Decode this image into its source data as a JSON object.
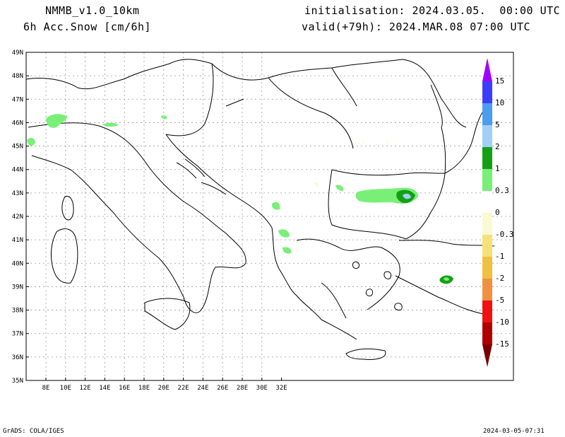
{
  "header": {
    "model": "NMMB_v1.0_10km",
    "field": "6h Acc.Snow [cm/6h]",
    "init": "initialisation: 2024.03.05.  00:00 UTC",
    "valid": "valid(+79h): 2024.MAR.08 07:00 UTC"
  },
  "footer": {
    "left": "GrADS: COLA/IGES",
    "right": "2024-03-05-07:31"
  },
  "axes": {
    "lat_labels": [
      "49N",
      "48N",
      "47N",
      "46N",
      "45N",
      "44N",
      "43N",
      "42N",
      "41N",
      "40N",
      "39N",
      "38N",
      "37N",
      "36N",
      "35N"
    ],
    "lon_labels": [
      "8E",
      "10E",
      "12E",
      "14E",
      "16E",
      "18E",
      "20E",
      "22E",
      "24E",
      "26E",
      "28E",
      "30E",
      "32E"
    ]
  },
  "legend": {
    "labels": [
      "15",
      "10",
      "5",
      "2",
      "1",
      "0.3",
      "0",
      "-0.3",
      "-1",
      "-2",
      "-5",
      "-10",
      "-15"
    ],
    "colors": [
      "#a000ff",
      "#3c3cff",
      "#4c9cf0",
      "#a0d0f8",
      "#14a014",
      "#78f078",
      "#ffffff",
      "#fafad2",
      "#f8e078",
      "#f0c040",
      "#f09040",
      "#f01010",
      "#b00000",
      "#7a0000"
    ]
  },
  "snow_colors": {
    "light": "#78f078",
    "mid": "#14a014",
    "high": "#a0d0f8",
    "faint": "#fafad2"
  }
}
